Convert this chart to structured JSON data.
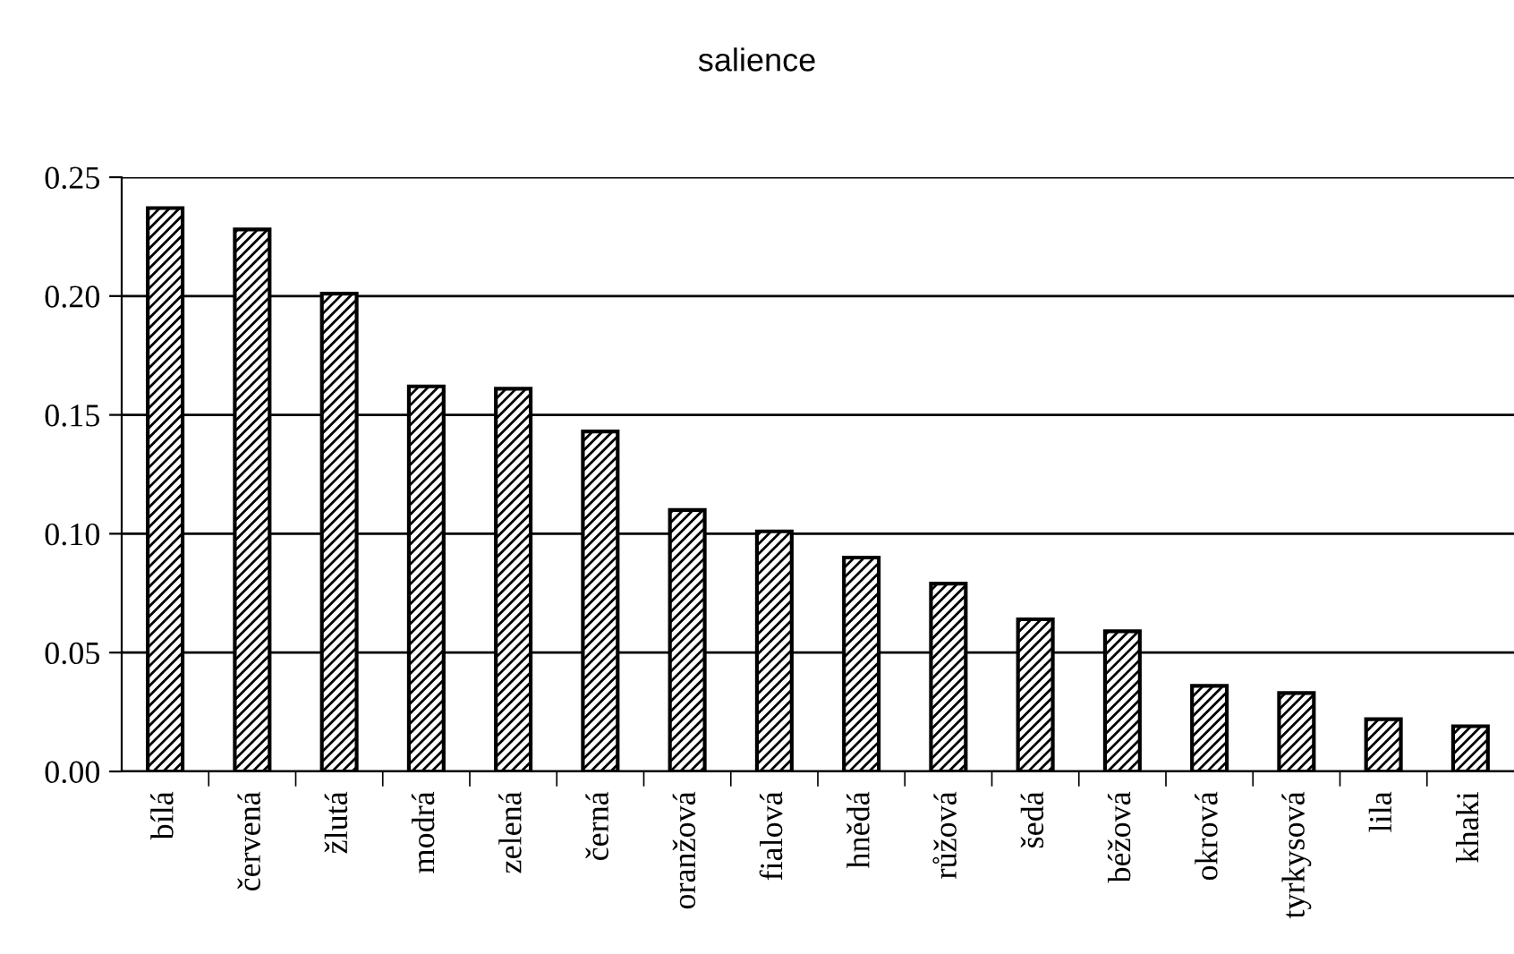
{
  "chart_data": {
    "type": "bar",
    "title": "salience",
    "categories": [
      "bílá",
      "červená",
      "žlutá",
      "modrá",
      "zelená",
      "černá",
      "oranžová",
      "fialová",
      "hnědá",
      "růžová",
      "šedá",
      "béžová",
      "okrová",
      "tyrkysová",
      "lila",
      "khaki"
    ],
    "values": [
      0.237,
      0.228,
      0.201,
      0.162,
      0.161,
      0.143,
      0.11,
      0.101,
      0.09,
      0.079,
      0.064,
      0.059,
      0.036,
      0.033,
      0.022,
      0.019
    ],
    "color": "#000000",
    "ylim": [
      0,
      0.25
    ],
    "yticks": [
      {
        "value": 0,
        "label": "0.00"
      },
      {
        "value": 0.05,
        "label": "0.05"
      },
      {
        "value": 0.1,
        "label": "0.10"
      },
      {
        "value": 0.15,
        "label": "0.15"
      },
      {
        "value": 0.2,
        "label": "0.20"
      },
      {
        "value": 0.25,
        "label": "0.25"
      }
    ],
    "grid": "y",
    "legend": false
  }
}
